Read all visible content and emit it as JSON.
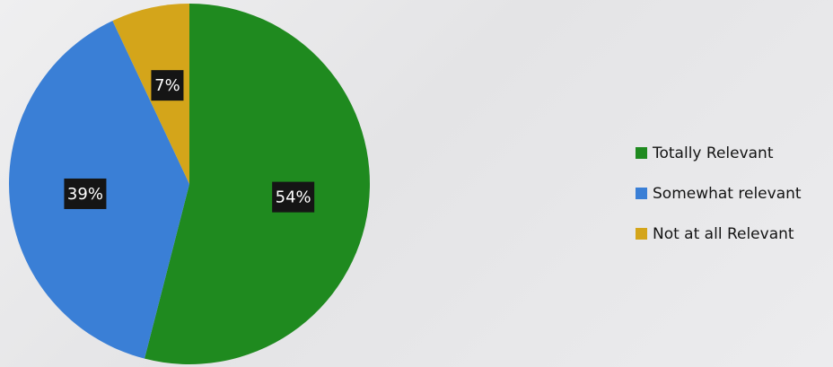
{
  "chart_data": {
    "type": "pie",
    "categories": [
      "Totally Relevant",
      "Somewhat relevant",
      "Not at all Relevant"
    ],
    "values": [
      54,
      39,
      7
    ],
    "data_labels": [
      "54%",
      "39%",
      "7%"
    ],
    "colors": [
      "#1f8a1f",
      "#3a7fd6",
      "#d4a51a"
    ],
    "title": "",
    "legend_placement": "right",
    "start_angle_deg": 0,
    "direction": "clockwise"
  }
}
